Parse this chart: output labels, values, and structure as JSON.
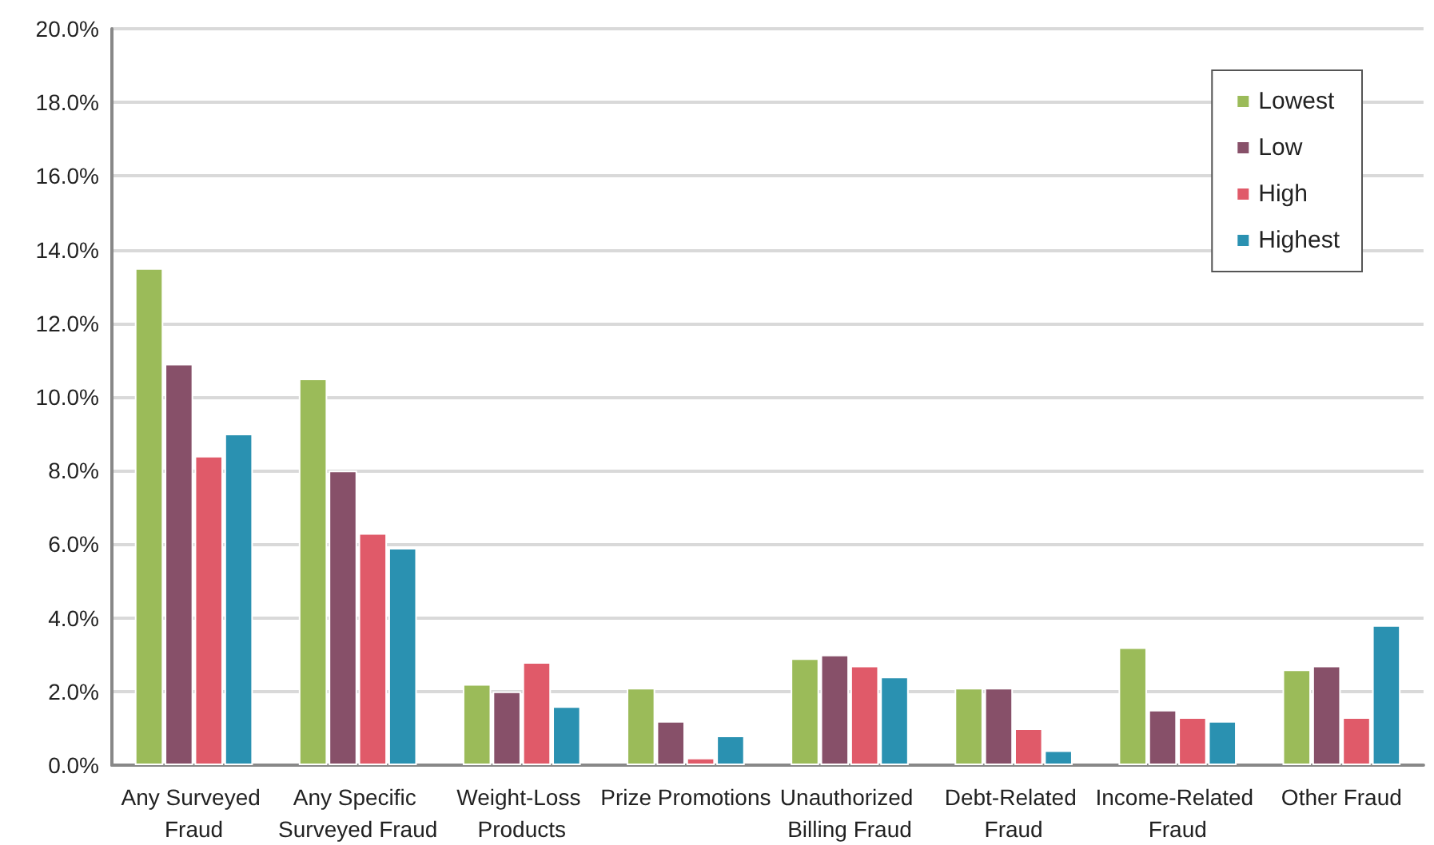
{
  "chart_data": {
    "type": "bar",
    "categories": [
      "Any Surveyed Fraud",
      "Any Specific Surveyed Fraud",
      "Weight-Loss Products",
      "Prize Promotions",
      "Unauthorized Billing Fraud",
      "Debt-Related Fraud",
      "Income-Related Fraud",
      "Other Fraud"
    ],
    "series": [
      {
        "name": "Lowest",
        "color": "#9bbb59",
        "values": [
          13.5,
          10.5,
          2.2,
          2.1,
          2.9,
          2.1,
          3.2,
          2.6
        ]
      },
      {
        "name": "Low",
        "color": "#875069",
        "values": [
          10.9,
          8.0,
          2.0,
          1.2,
          3.0,
          2.1,
          1.5,
          2.7
        ]
      },
      {
        "name": "High",
        "color": "#e05a69",
        "values": [
          8.4,
          6.3,
          2.8,
          0.2,
          2.7,
          1.0,
          1.3,
          1.3
        ]
      },
      {
        "name": "Highest",
        "color": "#2a91b1",
        "values": [
          9.0,
          5.9,
          1.6,
          0.8,
          2.4,
          0.4,
          1.2,
          3.8
        ]
      }
    ],
    "ylim": [
      0,
      20
    ],
    "yticks": [
      {
        "value": 0,
        "label": "0.0%"
      },
      {
        "value": 2,
        "label": "2.0%"
      },
      {
        "value": 4,
        "label": "4.0%"
      },
      {
        "value": 6,
        "label": "6.0%"
      },
      {
        "value": 8,
        "label": "8.0%"
      },
      {
        "value": 10,
        "label": "10.0%"
      },
      {
        "value": 12,
        "label": "12.0%"
      },
      {
        "value": 14,
        "label": "14.0%"
      },
      {
        "value": 16,
        "label": "16.0%"
      },
      {
        "value": 18,
        "label": "18.0%"
      },
      {
        "value": 20,
        "label": "20.0%"
      }
    ],
    "grid": "y",
    "legend": "top right"
  }
}
